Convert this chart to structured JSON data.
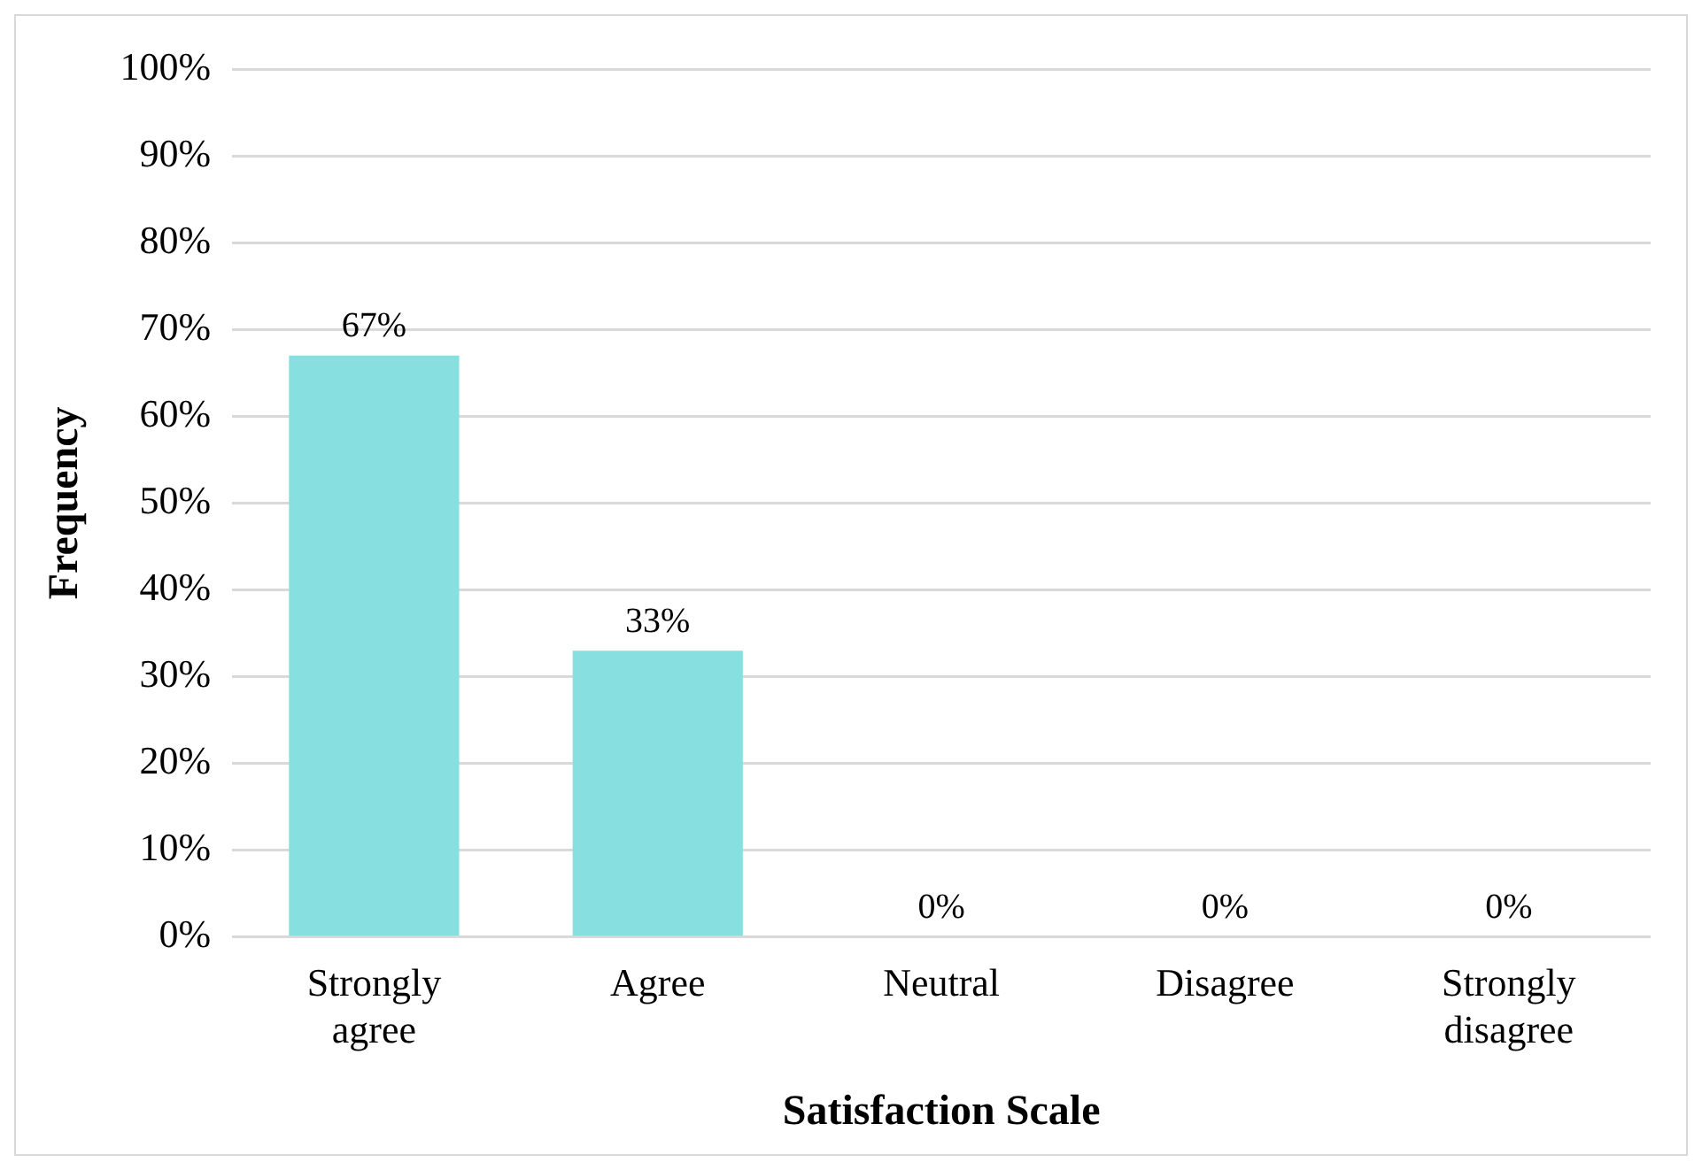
{
  "chart_data": {
    "type": "bar",
    "categories": [
      "Strongly agree",
      "Agree",
      "Neutral",
      "Disagree",
      "Strongly disagree"
    ],
    "values": [
      67,
      33,
      0,
      0,
      0
    ],
    "value_labels": [
      "67%",
      "33%",
      "0%",
      "0%",
      "0%"
    ],
    "color": "#87e0df",
    "xlabel": "Satisfaction Scale",
    "ylabel": "Frequency",
    "ylim": [
      0,
      100
    ],
    "yticks": [
      {
        "value": 0,
        "label": "0%"
      },
      {
        "value": 10,
        "label": "10%"
      },
      {
        "value": 20,
        "label": "20%"
      },
      {
        "value": 30,
        "label": "30%"
      },
      {
        "value": 40,
        "label": "40%"
      },
      {
        "value": 50,
        "label": "50%"
      },
      {
        "value": 60,
        "label": "60%"
      },
      {
        "value": 70,
        "label": "70%"
      },
      {
        "value": 80,
        "label": "80%"
      },
      {
        "value": 90,
        "label": "90%"
      },
      {
        "value": 100,
        "label": "100%"
      }
    ],
    "grid": "y",
    "legend": false
  }
}
